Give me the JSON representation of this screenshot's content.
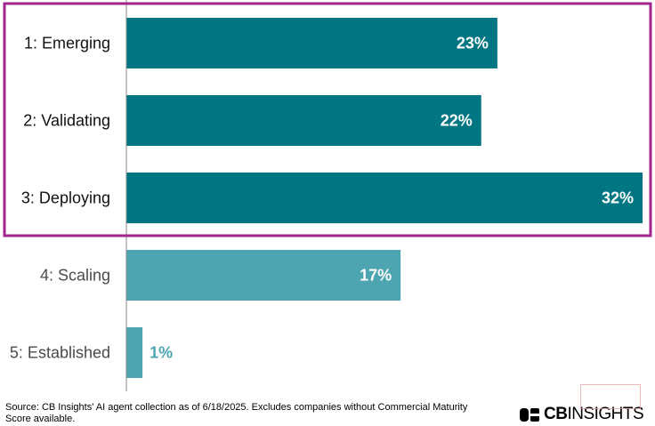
{
  "chart_data": {
    "type": "bar",
    "orientation": "horizontal",
    "categories": [
      "1: Emerging",
      "2: Validating",
      "3: Deploying",
      "4: Scaling",
      "5: Established"
    ],
    "values": [
      23,
      22,
      32,
      17,
      1
    ],
    "value_labels": [
      "23%",
      "22%",
      "32%",
      "17%",
      "1%"
    ],
    "xlim": [
      0,
      32
    ],
    "grid": false,
    "legend": "none",
    "highlighted_categories": [
      "1: Emerging",
      "2: Validating",
      "3: Deploying"
    ],
    "colors": {
      "highlighted_bar": "#007683",
      "other_bar": "#4ea5b2",
      "highlight_box": "#a3248c",
      "axis": "#888888",
      "highlighted_label": "#111111",
      "other_label": "#4a4a4a",
      "label_inside": "#ffffff",
      "label_outside": "#4ea5b2"
    }
  },
  "footer": {
    "source": "Source: CB Insights' AI agent collection as of 6/18/2025. Excludes companies without Commercial Maturity Score available.",
    "logo_text_bold": "CB",
    "logo_text_light": "INSIGHTS",
    "logo_icon": "cb-insights-logo-icon"
  }
}
